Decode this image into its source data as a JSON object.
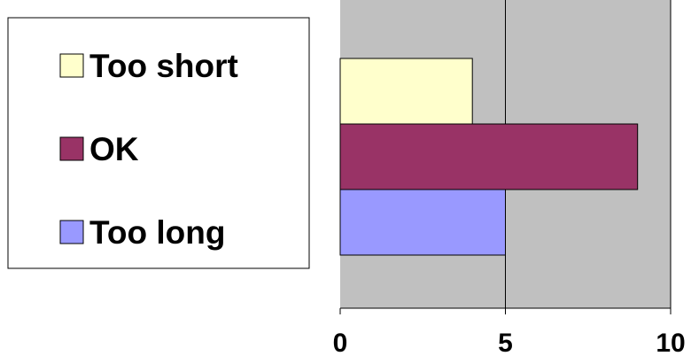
{
  "chart_data": {
    "type": "bar",
    "orientation": "horizontal",
    "categories": [
      "Too short",
      "OK",
      "Too long"
    ],
    "values": [
      4,
      9,
      5
    ],
    "xlim": [
      0,
      10
    ],
    "ticks": [
      0,
      5,
      10
    ],
    "grid": true,
    "legend_position": "left",
    "plot_background": "#c0c0c0",
    "colors": [
      "#ffffcc",
      "#993366",
      "#9999ff"
    ],
    "legend": [
      {
        "label": "Too short",
        "color": "#ffffcc"
      },
      {
        "label": "OK",
        "color": "#993366"
      },
      {
        "label": "Too long",
        "color": "#9999ff"
      }
    ]
  }
}
